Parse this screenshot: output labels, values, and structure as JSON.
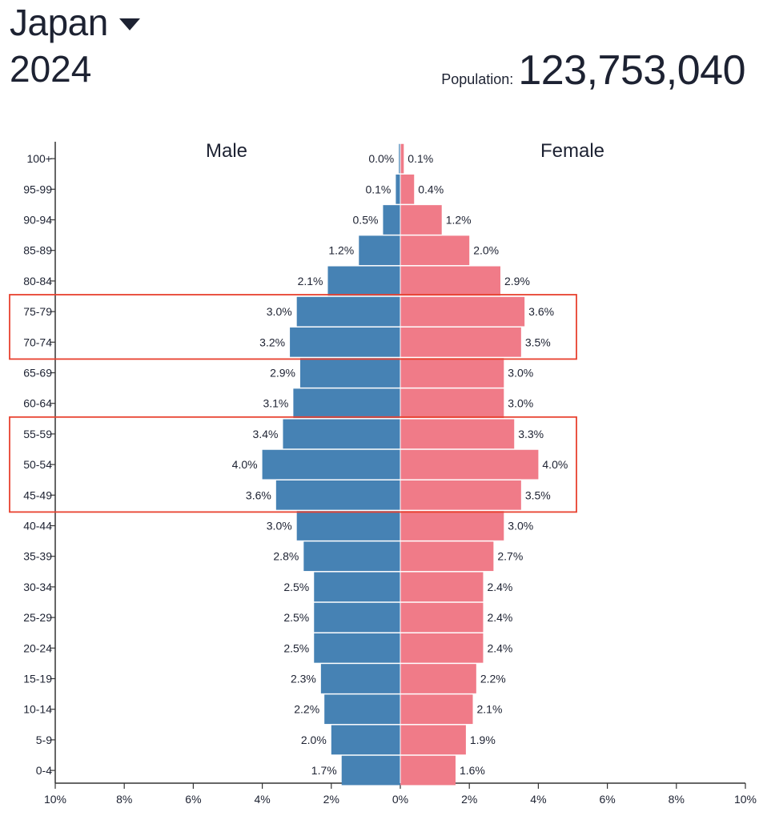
{
  "header": {
    "country": "Japan",
    "year": "2024",
    "population_label": "Population:",
    "population_value": "123,753,040"
  },
  "chart_data": {
    "type": "bar",
    "subtype": "population-pyramid",
    "left_label": "Male",
    "right_label": "Female",
    "categories": [
      "100+",
      "95-99",
      "90-94",
      "85-89",
      "80-84",
      "75-79",
      "70-74",
      "65-69",
      "60-64",
      "55-59",
      "50-54",
      "45-49",
      "40-44",
      "35-39",
      "30-34",
      "25-29",
      "20-24",
      "15-19",
      "10-14",
      "5-9",
      "0-4"
    ],
    "series": [
      {
        "name": "Male",
        "color": "#4682b4",
        "values": [
          0.04,
          0.13,
          0.5,
          1.2,
          2.1,
          3.0,
          3.2,
          2.9,
          3.1,
          3.4,
          4.0,
          3.6,
          3.0,
          2.8,
          2.5,
          2.5,
          2.5,
          2.3,
          2.2,
          2.0,
          1.7
        ],
        "labels": [
          "0.0%",
          "0.1%",
          "0.5%",
          "1.2%",
          "2.1%",
          "3.0%",
          "3.2%",
          "2.9%",
          "3.1%",
          "3.4%",
          "4.0%",
          "3.6%",
          "3.0%",
          "2.8%",
          "2.5%",
          "2.5%",
          "2.5%",
          "2.3%",
          "2.2%",
          "2.0%",
          "1.7%"
        ]
      },
      {
        "name": "Female",
        "color": "#f07b88",
        "values": [
          0.1,
          0.4,
          1.2,
          2.0,
          2.9,
          3.6,
          3.5,
          3.0,
          3.0,
          3.3,
          4.0,
          3.5,
          3.0,
          2.7,
          2.4,
          2.4,
          2.4,
          2.2,
          2.1,
          1.9,
          1.6
        ],
        "labels": [
          "0.1%",
          "0.4%",
          "1.2%",
          "2.0%",
          "2.9%",
          "3.6%",
          "3.5%",
          "3.0%",
          "3.0%",
          "3.3%",
          "4.0%",
          "3.5%",
          "3.0%",
          "2.7%",
          "2.4%",
          "2.4%",
          "2.4%",
          "2.2%",
          "2.1%",
          "1.9%",
          "1.6%"
        ]
      }
    ],
    "xlim": [
      -10,
      10
    ],
    "x_ticks": [
      "10%",
      "8%",
      "6%",
      "4%",
      "2%",
      "0%",
      "2%",
      "4%",
      "6%",
      "8%",
      "10%"
    ],
    "grid": false,
    "highlights": [
      {
        "categories": [
          "75-79",
          "70-74"
        ],
        "color": "#e8412f"
      },
      {
        "categories": [
          "55-59",
          "50-54",
          "45-49"
        ],
        "color": "#e8412f"
      }
    ]
  }
}
